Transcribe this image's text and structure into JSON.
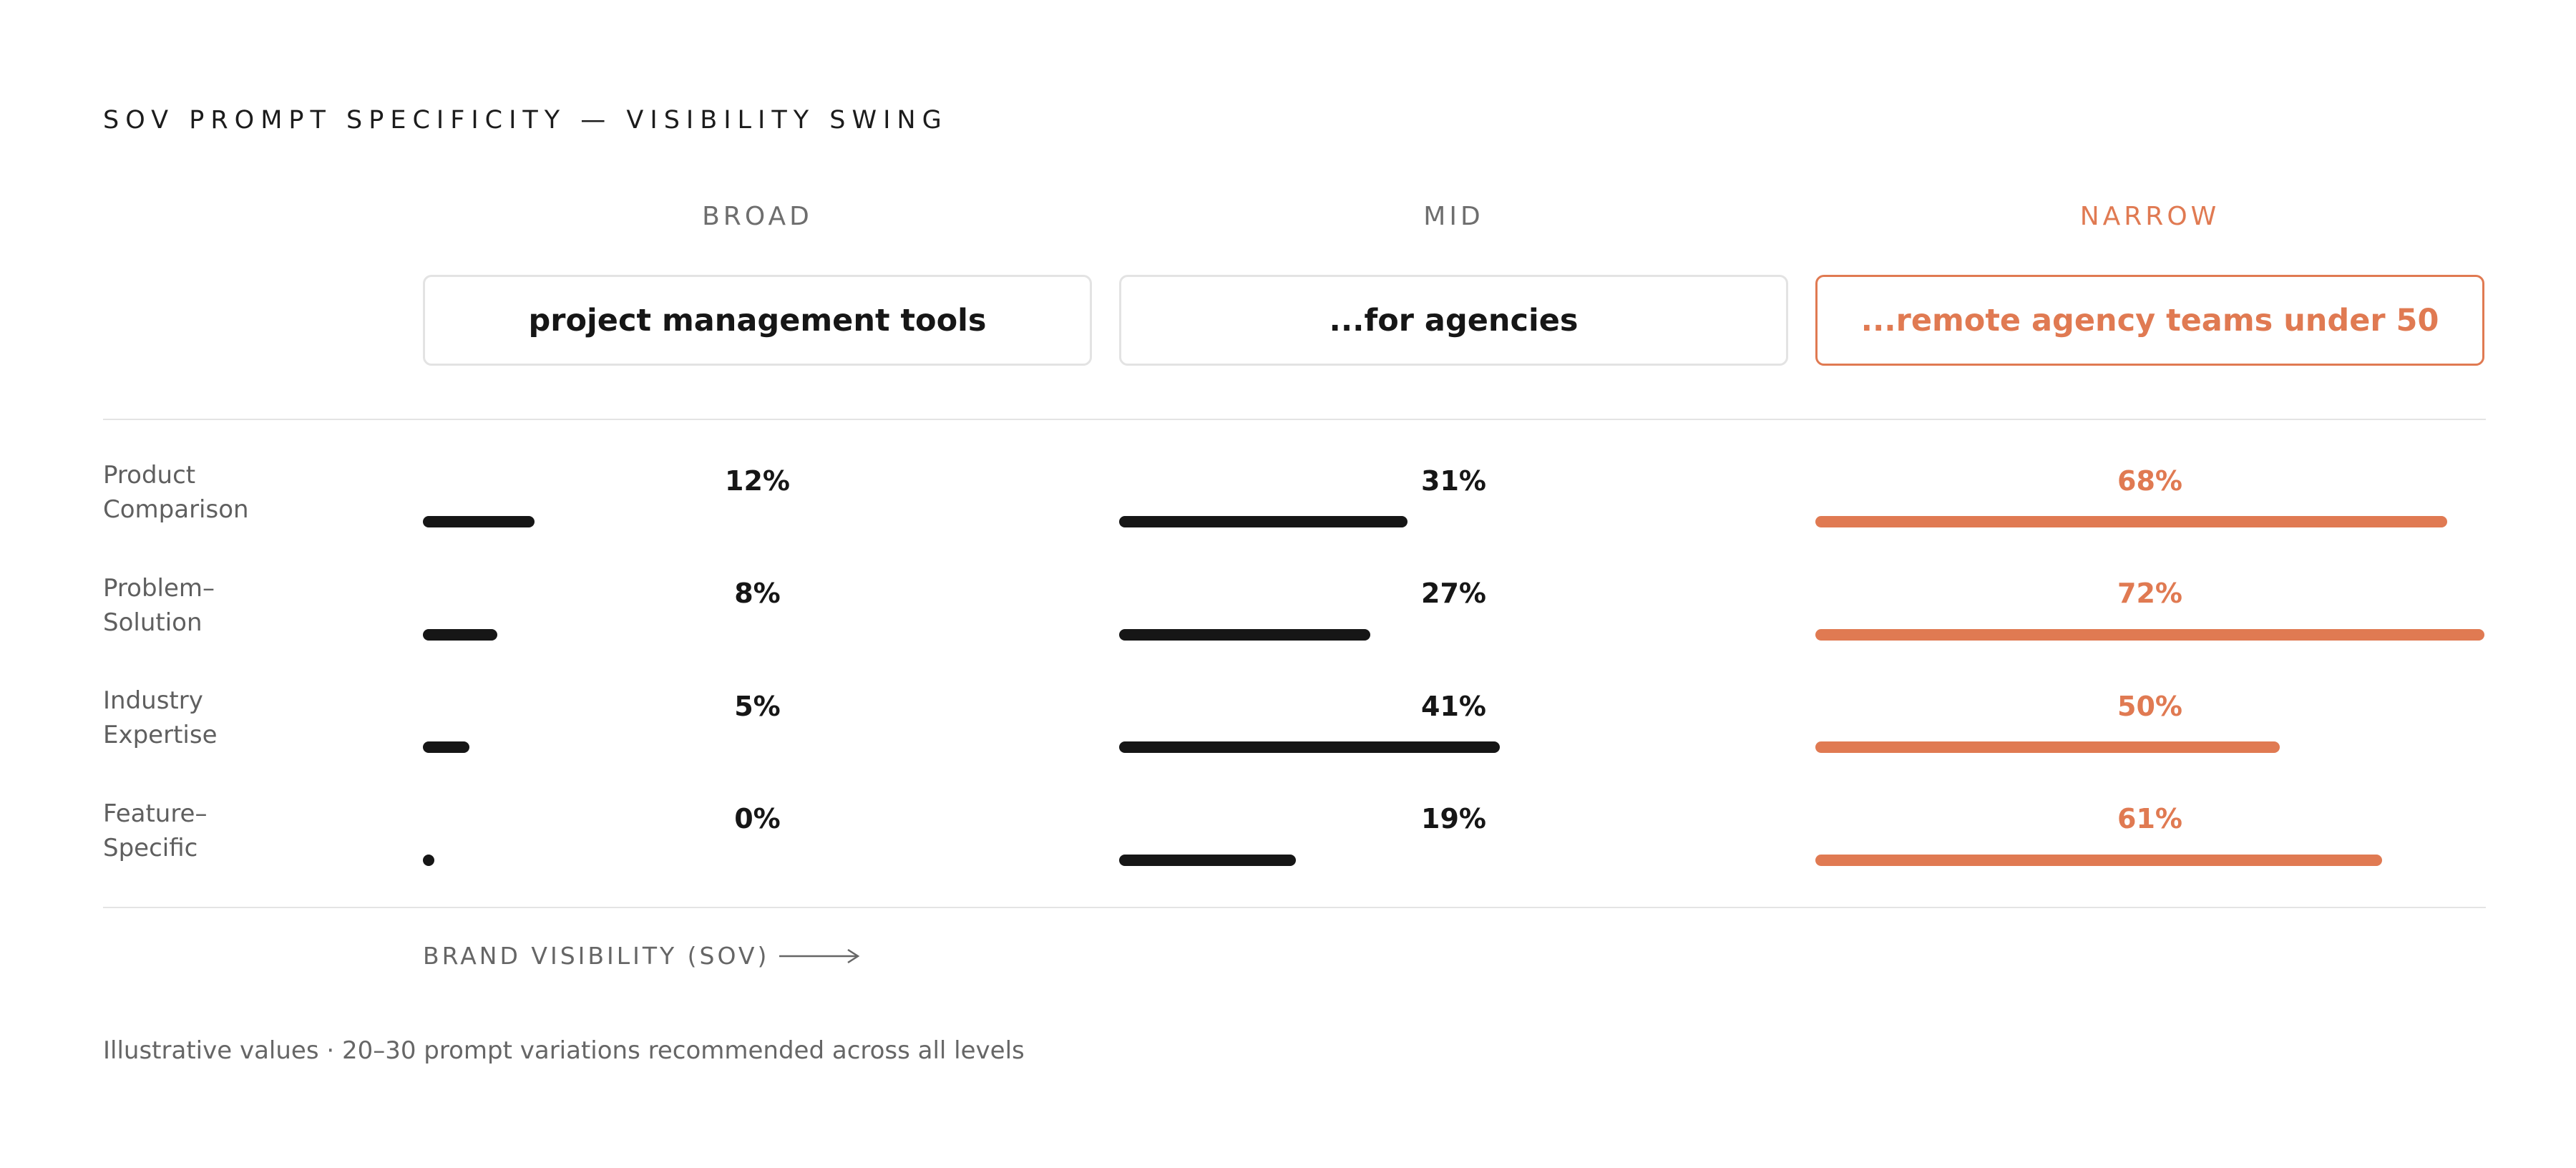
{
  "title": "SOV PROMPT SPECIFICITY — VISIBILITY SWING",
  "columns": [
    {
      "label": "BROAD",
      "prompt": "project management tools"
    },
    {
      "label": "MID",
      "prompt": "...for agencies"
    },
    {
      "label": "NARROW",
      "prompt": "...remote agency teams under 50"
    }
  ],
  "rows": [
    {
      "label_line1": "Product",
      "label_line2": "Comparison",
      "values_text": [
        "12%",
        "31%",
        "68%"
      ]
    },
    {
      "label_line1": "Problem–",
      "label_line2": "Solution",
      "values_text": [
        "8%",
        "27%",
        "72%"
      ]
    },
    {
      "label_line1": "Industry",
      "label_line2": "Expertise",
      "values_text": [
        "5%",
        "41%",
        "50%"
      ]
    },
    {
      "label_line1": "Feature–",
      "label_line2": "Specific",
      "values_text": [
        "0%",
        "19%",
        "61%"
      ]
    }
  ],
  "axis_caption": "BRAND VISIBILITY (SOV)",
  "footnote": "Illustrative values · 20–30 prompt variations recommended across all levels",
  "colors": {
    "accent": "#e07a52",
    "ink": "#161616",
    "muted": "#6e6e6e",
    "rule": "#e4e4e4"
  },
  "chart_data": {
    "type": "bar",
    "title": "SOV PROMPT SPECIFICITY — VISIBILITY SWING",
    "xlabel": "BRAND VISIBILITY (SOV)",
    "categories": [
      "Product Comparison",
      "Problem–Solution",
      "Industry Expertise",
      "Feature–Specific"
    ],
    "series": [
      {
        "name": "BROAD",
        "values": [
          12,
          8,
          5,
          0
        ]
      },
      {
        "name": "MID",
        "values": [
          31,
          27,
          41,
          19
        ]
      },
      {
        "name": "NARROW",
        "values": [
          68,
          72,
          50,
          61
        ]
      }
    ],
    "xlim": [
      0,
      72
    ],
    "grid": false,
    "legend": "top"
  }
}
